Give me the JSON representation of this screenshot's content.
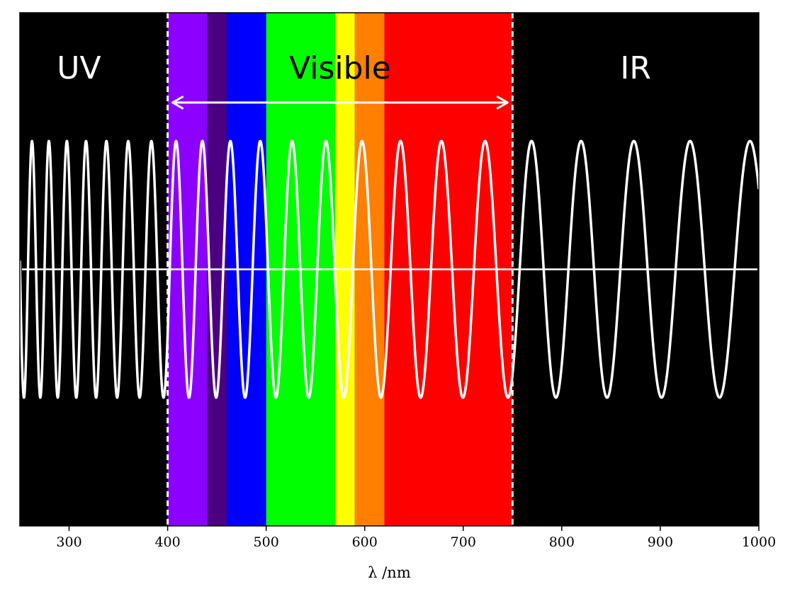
{
  "chart_data": {
    "type": "line",
    "title": "",
    "xlabel": "λ /nm",
    "ylabel": "",
    "xlim": [
      250,
      1000
    ],
    "ylim": [
      -2,
      2
    ],
    "xticks": [
      300,
      400,
      500,
      600,
      700,
      800,
      900,
      1000
    ],
    "background_color": "#000000",
    "regions": [
      {
        "name": "UV",
        "from": 250,
        "to": 400,
        "label_x": 310,
        "color": "#000000",
        "label_color": "#ffffff"
      },
      {
        "name": "Visible",
        "from": 400,
        "to": 750,
        "label_x": 575,
        "color": "",
        "label_color": "#000000"
      },
      {
        "name": "IR",
        "from": 750,
        "to": 1000,
        "label_x": 875,
        "color": "#000000",
        "label_color": "#ffffff"
      }
    ],
    "color_bands": [
      {
        "from": 400,
        "to": 440,
        "color": "#8b00ff"
      },
      {
        "from": 440,
        "to": 460,
        "color": "#4b0082"
      },
      {
        "from": 460,
        "to": 500,
        "color": "#0000ff"
      },
      {
        "from": 500,
        "to": 570,
        "color": "#00ff00"
      },
      {
        "from": 570,
        "to": 590,
        "color": "#ffff00"
      },
      {
        "from": 590,
        "to": 620,
        "color": "#ff7f00"
      },
      {
        "from": 620,
        "to": 750,
        "color": "#ff0000"
      }
    ],
    "boundaries": [
      400,
      750
    ],
    "arrow": {
      "from": 405,
      "to": 745,
      "y": 1.3
    },
    "wave": {
      "color": "#ffffff",
      "amplitude": 1,
      "phase_equation": "phase(x) = 2π·k·ln(x)",
      "k": 15.8,
      "x_range": [
        250,
        1000
      ]
    },
    "axis_line": {
      "y": 0,
      "color": "#ffffff"
    }
  }
}
